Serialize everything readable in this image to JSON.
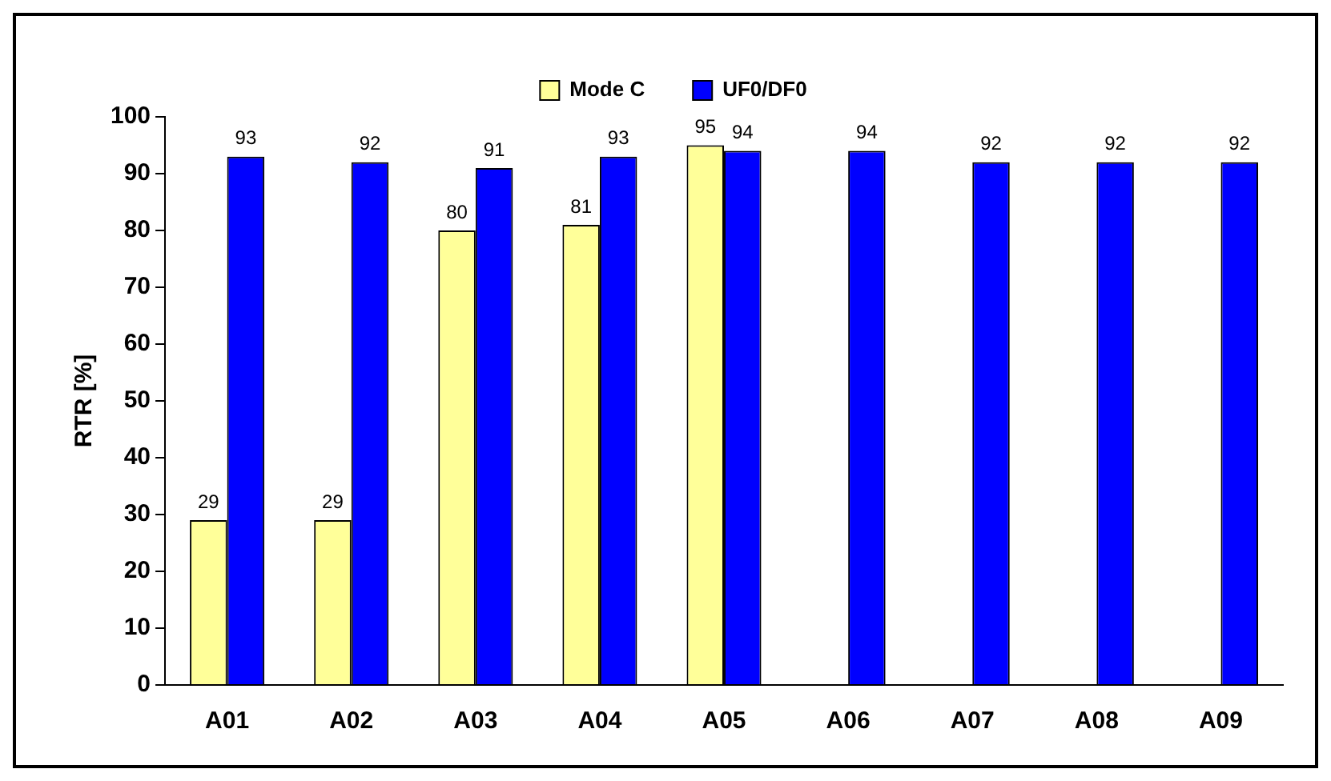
{
  "chart_data": {
    "type": "bar",
    "ylabel": "RTR [%]",
    "categories": [
      "A01",
      "A02",
      "A03",
      "A04",
      "A05",
      "A06",
      "A07",
      "A08",
      "A09"
    ],
    "series": [
      {
        "name": "Mode C",
        "color": "#ffff99",
        "values": [
          29,
          29,
          80,
          81,
          95,
          null,
          null,
          null,
          null
        ]
      },
      {
        "name": "UF0/DF0",
        "color": "#0000ff",
        "values": [
          93,
          92,
          91,
          93,
          94,
          94,
          92,
          92,
          92
        ]
      }
    ],
    "ylim": [
      0,
      100
    ],
    "yticks": [
      0,
      10,
      20,
      30,
      40,
      50,
      60,
      70,
      80,
      90,
      100
    ],
    "grid": false,
    "legend": "top",
    "data_labels": true
  }
}
